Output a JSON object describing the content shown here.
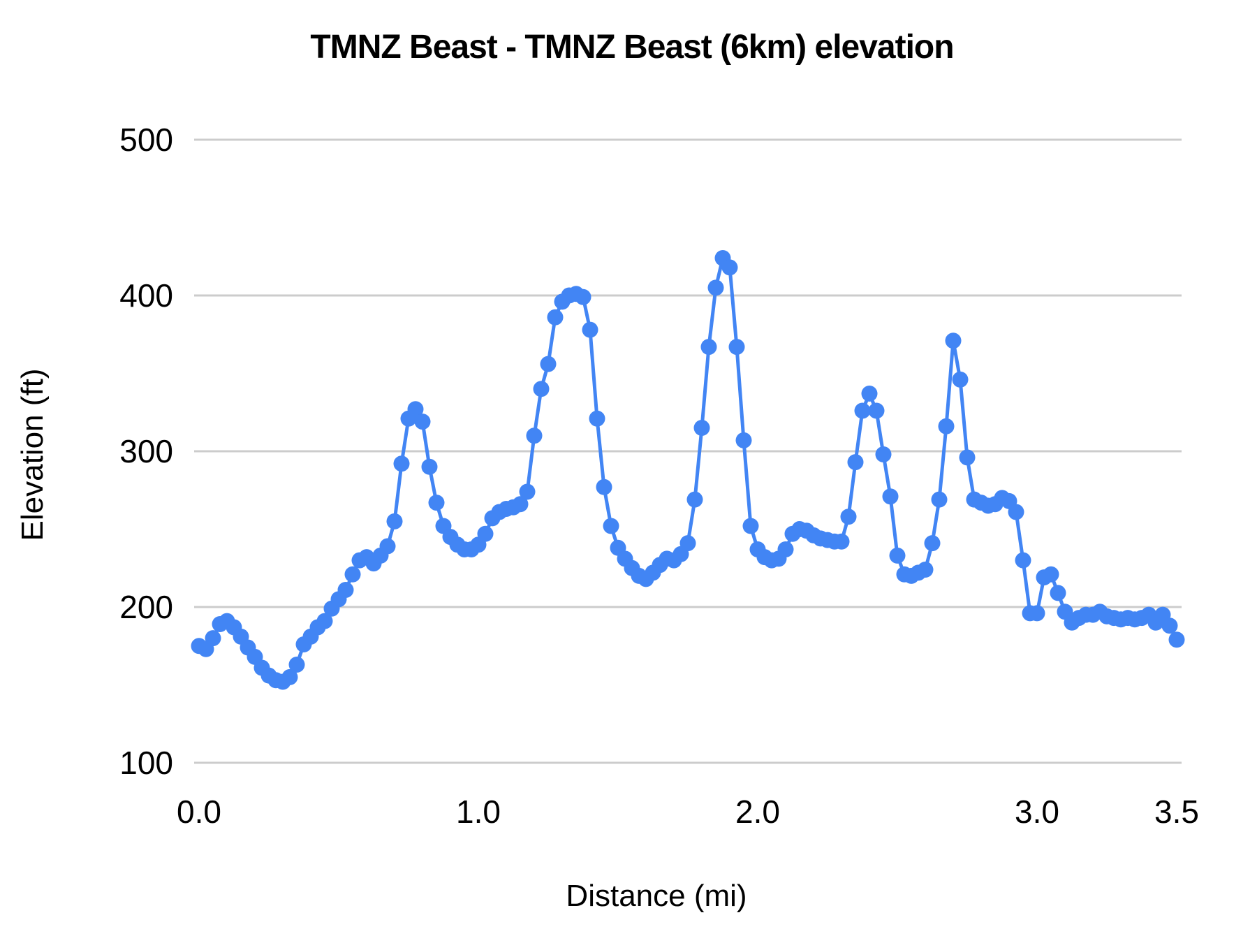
{
  "chart": {
    "title": "TMNZ Beast - TMNZ Beast (6km) elevation",
    "x_axis_title": "Distance (mi)",
    "y_axis_title": "Elevation (ft)",
    "series_color": "#4285f4",
    "gridline_color": "#cccccc",
    "text_color": "#000000",
    "background_color": "#ffffff"
  },
  "chart_data": {
    "type": "line",
    "title": "TMNZ Beast - TMNZ Beast (6km) elevation",
    "xlabel": "Distance (mi)",
    "ylabel": "Elevation (ft)",
    "xlim": [
      0,
      3.5
    ],
    "ylim": [
      100,
      500
    ],
    "x_tick_values": [
      0,
      1,
      2,
      3,
      3.5
    ],
    "x_tick_labels": [
      "0.0",
      "1.0",
      "2.0",
      "3.0",
      "3.5"
    ],
    "y_tick_values": [
      100,
      200,
      300,
      400,
      500
    ],
    "y_tick_labels": [
      "100",
      "200",
      "300",
      "400",
      "500"
    ],
    "grid": "horizontal-only",
    "legend": "none",
    "marker": "filled-circle",
    "x_units": "mi",
    "y_units": "ft",
    "x_start": 0,
    "x_step": 0.025,
    "series": [
      {
        "name": "elevation",
        "values": [
          175,
          173,
          180,
          189,
          191,
          187,
          181,
          174,
          168,
          161,
          156,
          153,
          152,
          155,
          163,
          176,
          181,
          187,
          191,
          199,
          205,
          211,
          221,
          230,
          232,
          228,
          233,
          239,
          255,
          292,
          321,
          327,
          319,
          290,
          267,
          252,
          245,
          240,
          237,
          237,
          240,
          247,
          257,
          261,
          263,
          264,
          266,
          274,
          310,
          340,
          356,
          386,
          396,
          400,
          401,
          399,
          378,
          321,
          277,
          252,
          238,
          231,
          225,
          220,
          218,
          222,
          227,
          231,
          230,
          234,
          241,
          269,
          315,
          367,
          405,
          424,
          418,
          367,
          307,
          252,
          237,
          232,
          230,
          231,
          237,
          247,
          250,
          249,
          246,
          244,
          243,
          242,
          242,
          258,
          293,
          326,
          337,
          326,
          298,
          271,
          233,
          221,
          220,
          222,
          224,
          241,
          269,
          316,
          371,
          346,
          296,
          269,
          267,
          265,
          266,
          270,
          268,
          261,
          230,
          196,
          196,
          219,
          221,
          209,
          197,
          190,
          193,
          195,
          195,
          197,
          194,
          193,
          192,
          193,
          192,
          193,
          195,
          190,
          195,
          188,
          179
        ]
      }
    ]
  }
}
